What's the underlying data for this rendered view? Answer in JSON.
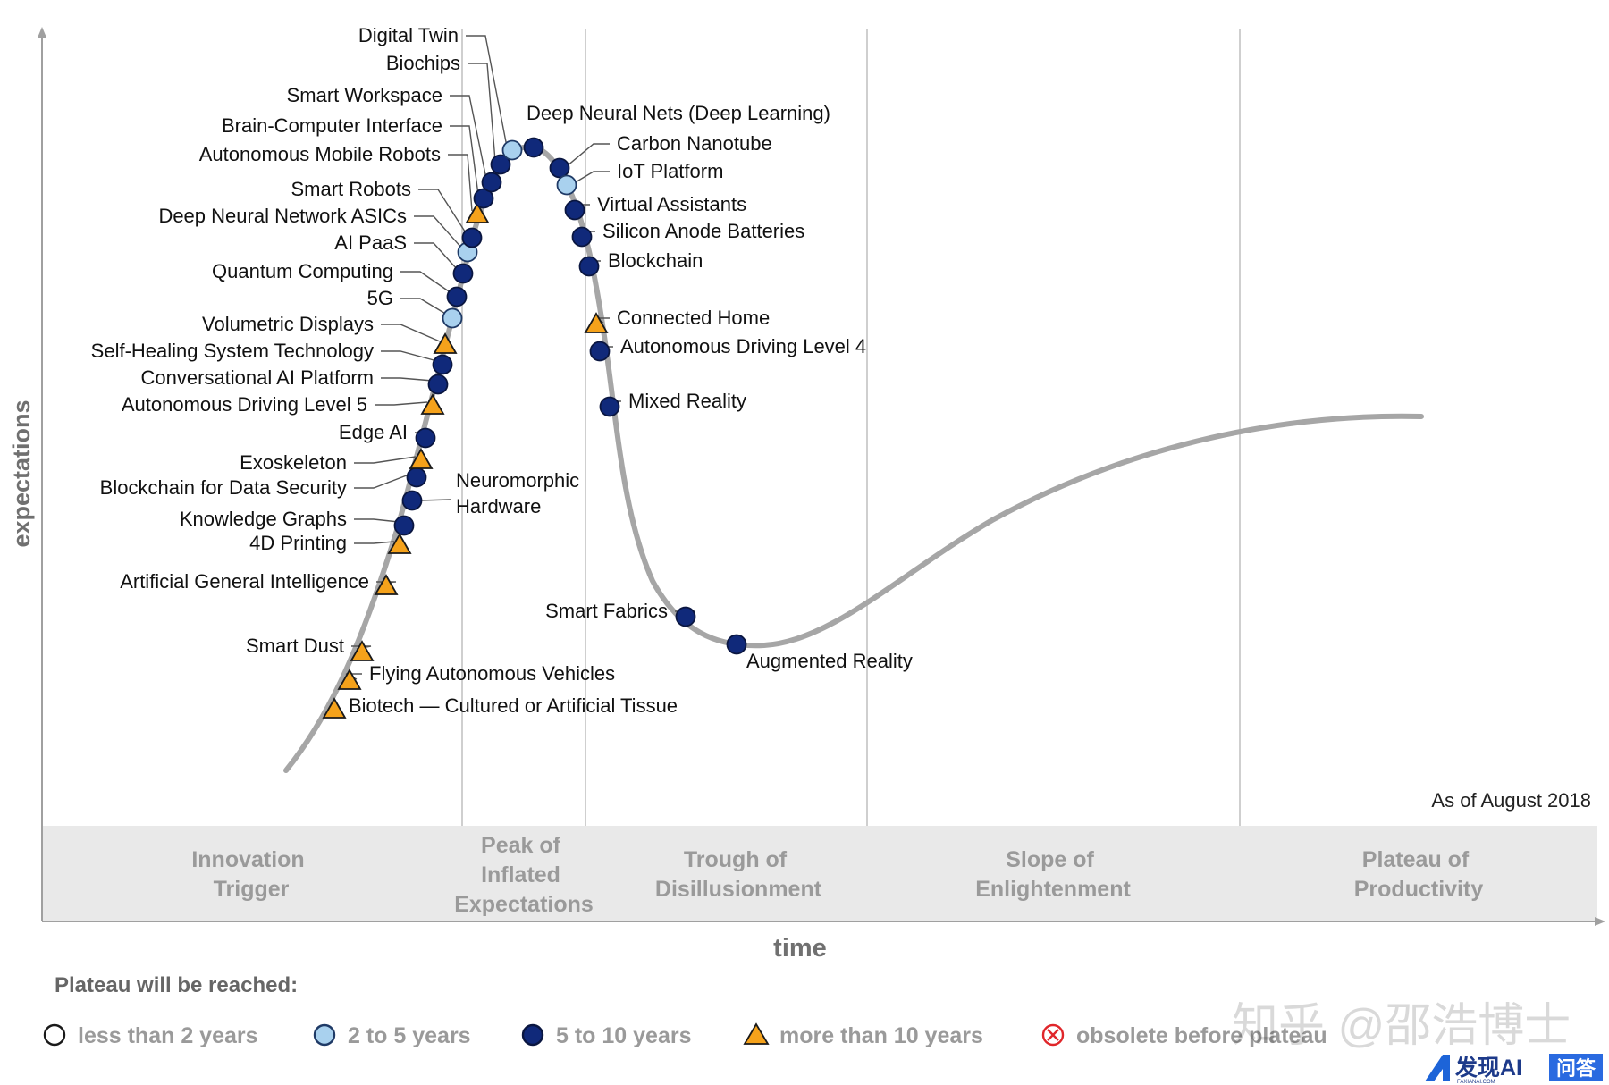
{
  "chart_data": {
    "type": "scatter",
    "title": "",
    "xlabel": "time",
    "ylabel": "expectations",
    "note": "As of August 2018",
    "phases": [
      {
        "lines": [
          "Innovation",
          "Trigger"
        ]
      },
      {
        "lines": [
          "Peak of",
          "Inflated",
          "Expectations"
        ]
      },
      {
        "lines": [
          "Trough of",
          "Disillusionment"
        ]
      },
      {
        "lines": [
          "Slope of",
          "Enlightenment"
        ]
      },
      {
        "lines": [
          "Plateau of",
          "Productivity"
        ]
      }
    ],
    "legend": {
      "title": "Plateau will be reached:",
      "items": [
        {
          "id": "lt2",
          "label": "less than 2 years",
          "marker": "circle",
          "fill": "#ffffff",
          "stroke": "#1a1a1a"
        },
        {
          "id": "y2to5",
          "label": "2 to 5 years",
          "marker": "circle",
          "fill": "#a9d1ee",
          "stroke": "#1f3a66"
        },
        {
          "id": "y5to10",
          "label": "5 to 10 years",
          "marker": "circle",
          "fill": "#10297a",
          "stroke": "#0a1640"
        },
        {
          "id": "gt10",
          "label": "more than 10 years",
          "marker": "triangle",
          "fill": "#f5a21b",
          "stroke": "#1a1a1a"
        },
        {
          "id": "obsolete",
          "label": "obsolete before plateau",
          "marker": "cross",
          "fill": "#ffffff",
          "stroke": "#e0262a"
        }
      ]
    },
    "colors": {
      "curve": "#a6a6a6",
      "phase_band": "#e9e9e9",
      "phase_text": "#9a9a9a",
      "divider": "#cfcfcf"
    },
    "series": [
      {
        "name": "Biotech — Cultured or Artificial Tissue",
        "category": "gt10",
        "x": 3.3,
        "y": 14.0
      },
      {
        "name": "Flying Autonomous Vehicles",
        "category": "gt10",
        "x": 3.6,
        "y": 17.5
      },
      {
        "name": "Smart Dust",
        "category": "gt10",
        "x": 4.1,
        "y": 21.0
      },
      {
        "name": "Artificial General Intelligence",
        "category": "gt10",
        "x": 5.3,
        "y": 29.5
      },
      {
        "name": "4D Printing",
        "category": "gt10",
        "x": 5.9,
        "y": 34.0
      },
      {
        "name": "Knowledge Graphs",
        "category": "y5to10",
        "x": 6.1,
        "y": 37.0
      },
      {
        "name": "Neuromorphic Hardware",
        "category": "y5to10",
        "x": 6.4,
        "y": 40.0
      },
      {
        "name": "Blockchain for Data Security",
        "category": "y5to10",
        "x": 6.7,
        "y": 43.0
      },
      {
        "name": "Exoskeleton",
        "category": "gt10",
        "x": 6.9,
        "y": 45.0
      },
      {
        "name": "Edge AI",
        "category": "y5to10",
        "x": 7.2,
        "y": 48.5
      },
      {
        "name": "Autonomous Driving Level 5",
        "category": "gt10",
        "x": 7.5,
        "y": 52.0
      },
      {
        "name": "Conversational AI Platform",
        "category": "y5to10",
        "x": 7.8,
        "y": 55.5
      },
      {
        "name": "Self-Healing System Technology",
        "category": "y5to10",
        "x": 8.0,
        "y": 58.5
      },
      {
        "name": "Volumetric Displays",
        "category": "gt10",
        "x": 8.3,
        "y": 61.5
      },
      {
        "name": "5G",
        "category": "y2to5",
        "x": 8.8,
        "y": 65.0
      },
      {
        "name": "Quantum Computing",
        "category": "y5to10",
        "x": 9.1,
        "y": 67.5
      },
      {
        "name": "AI PaaS",
        "category": "y5to10",
        "x": 9.5,
        "y": 70.5
      },
      {
        "name": "Deep Neural Network ASICs",
        "category": "y2to5",
        "x": 9.8,
        "y": 73.0
      },
      {
        "name": "Smart Robots",
        "category": "y5to10",
        "x": 10.3,
        "y": 75.5
      },
      {
        "name": "Autonomous Mobile Robots",
        "category": "gt10",
        "x": 10.8,
        "y": 78.0
      },
      {
        "name": "Brain-Computer Interface",
        "category": "y5to10",
        "x": 11.4,
        "y": 80.5
      },
      {
        "name": "Smart Workspace",
        "category": "y5to10",
        "x": 12.1,
        "y": 82.5
      },
      {
        "name": "Biochips",
        "category": "y5to10",
        "x": 13.1,
        "y": 84.0
      },
      {
        "name": "Digital Twin",
        "category": "y2to5",
        "x": 14.6,
        "y": 84.8
      },
      {
        "name": "Deep Neural Nets (Deep Learning)",
        "category": "y5to10",
        "x": 16.5,
        "y": 82.5
      },
      {
        "name": "Carbon Nanotube",
        "category": "y5to10",
        "x": 17.2,
        "y": 80.5
      },
      {
        "name": "IoT Platform",
        "category": "y2to5",
        "x": 17.7,
        "y": 76.5
      },
      {
        "name": "Virtual Assistants",
        "category": "y5to10",
        "x": 18.3,
        "y": 73.0
      },
      {
        "name": "Silicon Anode Batteries",
        "category": "y5to10",
        "x": 18.7,
        "y": 69.0
      },
      {
        "name": "Blockchain",
        "category": "y5to10",
        "x": 19.3,
        "y": 61.5
      },
      {
        "name": "Connected Home",
        "category": "gt10",
        "x": 19.7,
        "y": 57.0
      },
      {
        "name": "Autonomous Driving Level 4",
        "category": "y5to10",
        "x": 20.6,
        "y": 49.5
      },
      {
        "name": "Mixed Reality",
        "category": "y5to10",
        "x": 28.5,
        "y": 25.5
      },
      {
        "name": "Smart Fabrics",
        "category": "y5to10",
        "x": 32.0,
        "y": 22.0
      },
      {
        "name": "Augmented Reality",
        "category": "y5to10",
        "x": 34.0,
        "y": 21.5
      }
    ]
  },
  "watermark": {
    "text": "知乎 @邵浩博士"
  },
  "badge": {
    "brand": "发现AI",
    "sub": "FAXIANAI.COM",
    "tag": "问答"
  }
}
